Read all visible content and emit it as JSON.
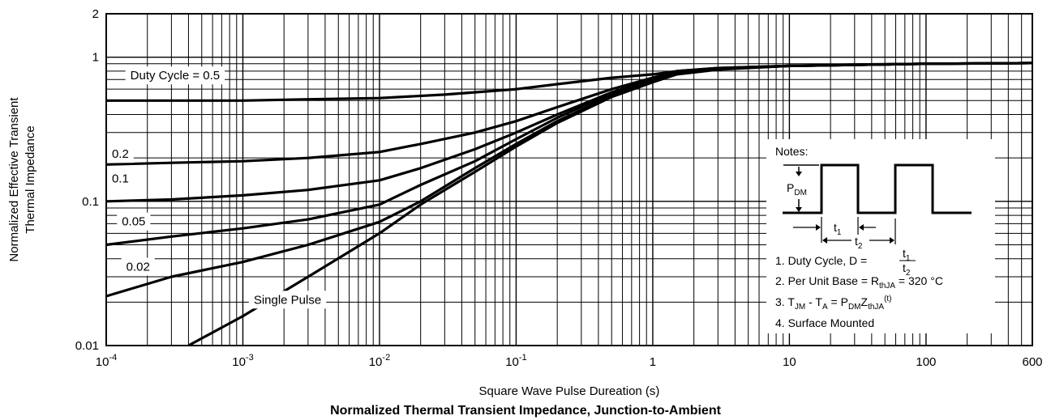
{
  "chart_data": {
    "type": "line",
    "title": "Normalized Thermal Transient Impedance, Junction-to-Ambient",
    "xlabel": "Square Wave Pulse Dureation (s)",
    "ylabel_line1": "Normalized Effective Transient",
    "ylabel_line2": "Thermal Impedance",
    "x_scale": "log",
    "y_scale": "log",
    "xlim": [
      0.0001,
      600
    ],
    "ylim": [
      0.01,
      2
    ],
    "x_ticks": [
      {
        "value": 0.0001,
        "base": "10",
        "exp": "-4"
      },
      {
        "value": 0.001,
        "base": "10",
        "exp": "-3"
      },
      {
        "value": 0.01,
        "base": "10",
        "exp": "-2"
      },
      {
        "value": 0.1,
        "base": "10",
        "exp": "-1"
      },
      {
        "value": 1,
        "base": "1",
        "exp": ""
      },
      {
        "value": 10,
        "base": "10",
        "exp": ""
      },
      {
        "value": 100,
        "base": "100",
        "exp": ""
      },
      {
        "value": 600,
        "base": "600",
        "exp": ""
      }
    ],
    "y_ticks": [
      {
        "value": 0.01,
        "label": "0.01"
      },
      {
        "value": 0.1,
        "label": "0.1"
      },
      {
        "value": 1,
        "label": "1"
      },
      {
        "value": 2,
        "label": "2"
      }
    ],
    "grid": true,
    "series": [
      {
        "name": "Duty Cycle = 0.5",
        "label_x": 0.00015,
        "label_y": 0.7,
        "x": [
          0.0001,
          0.0003,
          0.001,
          0.003,
          0.01,
          0.03,
          0.1,
          0.2,
          0.5,
          1,
          1.5,
          3,
          10,
          30,
          100,
          600
        ],
        "y": [
          0.5,
          0.5,
          0.5,
          0.51,
          0.52,
          0.55,
          0.6,
          0.65,
          0.72,
          0.76,
          0.8,
          0.84,
          0.87,
          0.89,
          0.9,
          0.91
        ]
      },
      {
        "name": "0.2",
        "label_x": 0.00011,
        "label_y": 0.2,
        "x": [
          0.0001,
          0.0003,
          0.001,
          0.003,
          0.01,
          0.02,
          0.05,
          0.1,
          0.2,
          0.5,
          1,
          1.5,
          3,
          10,
          100,
          600
        ],
        "y": [
          0.18,
          0.185,
          0.19,
          0.2,
          0.22,
          0.25,
          0.3,
          0.36,
          0.45,
          0.6,
          0.72,
          0.8,
          0.84,
          0.87,
          0.9,
          0.91
        ]
      },
      {
        "name": "0.1",
        "label_x": 0.00011,
        "label_y": 0.135,
        "x": [
          0.0001,
          0.0003,
          0.001,
          0.003,
          0.01,
          0.02,
          0.05,
          0.1,
          0.2,
          0.5,
          1,
          1.5,
          3,
          10,
          100,
          600
        ],
        "y": [
          0.1,
          0.103,
          0.11,
          0.12,
          0.14,
          0.17,
          0.23,
          0.3,
          0.4,
          0.57,
          0.7,
          0.78,
          0.83,
          0.87,
          0.9,
          0.91
        ]
      },
      {
        "name": "0.05",
        "label_x": 0.00013,
        "label_y": 0.068,
        "x": [
          0.0001,
          0.0003,
          0.001,
          0.003,
          0.01,
          0.02,
          0.05,
          0.1,
          0.2,
          0.5,
          1,
          1.5,
          3,
          10,
          100,
          600
        ],
        "y": [
          0.05,
          0.057,
          0.065,
          0.075,
          0.095,
          0.13,
          0.19,
          0.27,
          0.38,
          0.56,
          0.69,
          0.78,
          0.83,
          0.87,
          0.9,
          0.91
        ]
      },
      {
        "name": "0.02",
        "label_x": 0.00014,
        "label_y": 0.033,
        "x": [
          0.0001,
          0.0003,
          0.001,
          0.003,
          0.01,
          0.02,
          0.05,
          0.1,
          0.2,
          0.5,
          1,
          1.5,
          3,
          10,
          100,
          600
        ],
        "y": [
          0.022,
          0.03,
          0.038,
          0.05,
          0.072,
          0.1,
          0.17,
          0.25,
          0.36,
          0.54,
          0.68,
          0.77,
          0.83,
          0.87,
          0.9,
          0.91
        ]
      },
      {
        "name": "Single Pulse",
        "label_x": 0.0012,
        "label_y": 0.0195,
        "x": [
          0.0004,
          0.001,
          0.003,
          0.01,
          0.02,
          0.05,
          0.1,
          0.2,
          0.5,
          1,
          1.5,
          3,
          10,
          100,
          600
        ],
        "y": [
          0.01,
          0.016,
          0.03,
          0.06,
          0.095,
          0.16,
          0.24,
          0.35,
          0.53,
          0.67,
          0.76,
          0.82,
          0.87,
          0.9,
          0.91
        ]
      }
    ],
    "notes": {
      "header": "Notes:",
      "pdm": {
        "main": "P",
        "sub": "DM"
      },
      "t1": {
        "main": "t",
        "sub": "1"
      },
      "t2": {
        "main": "t",
        "sub": "2"
      },
      "n1": {
        "prefix": "1. Duty Cycle, D = ",
        "num_main": "t",
        "num_sub": "1",
        "den_main": "t",
        "den_sub": "2"
      },
      "n2": {
        "prefix": "2. Per Unit Base = R",
        "sub": "thJA",
        "suffix": " = 320 °C"
      },
      "n3": {
        "a": "3. T",
        "a_sub": "JM",
        "b": " - T",
        "b_sub": "A",
        "c": " = P",
        "c_sub": "DM",
        "d": "Z",
        "d_sub": "thJA",
        "d_sup": "(t)"
      },
      "n4": "4. Surface Mounted"
    }
  }
}
